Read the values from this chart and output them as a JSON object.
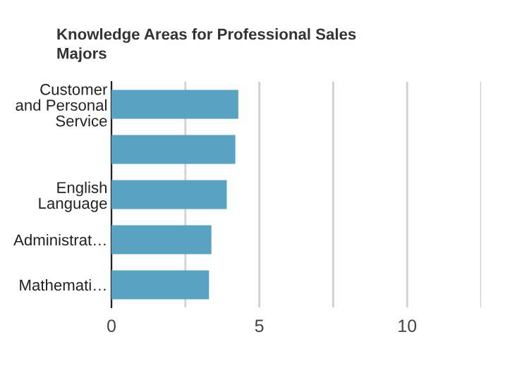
{
  "chart_data": {
    "type": "bar",
    "orientation": "horizontal",
    "title": "Knowledge Areas for Professional Sales\nMajors",
    "categories": [
      "Customer\nand Personal\nService",
      null,
      "English\nLanguage",
      "Administrat…",
      "Mathemati…"
    ],
    "values": [
      4.29,
      4.19,
      3.9,
      3.38,
      3.3
    ],
    "color": "#5aa2c1",
    "xlim": [
      0,
      12.5
    ],
    "xticks": [
      0,
      {
        "value": 2.5,
        "label": null
      },
      5,
      {
        "value": 7.5,
        "label": null
      },
      10,
      {
        "value": 12.5,
        "label": null
      }
    ],
    "grid": "x"
  }
}
